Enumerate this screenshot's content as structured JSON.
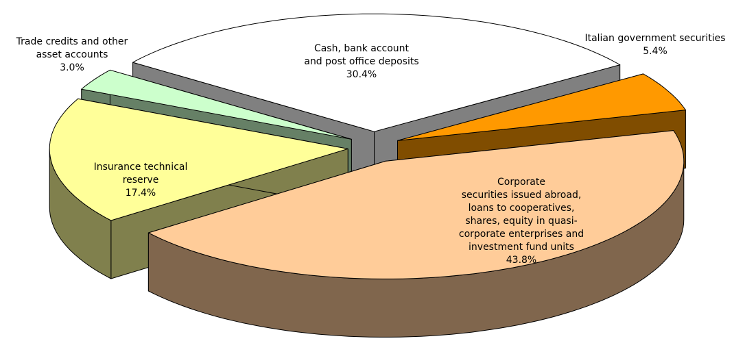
{
  "chart_data": {
    "type": "pie",
    "categories": [
      "Cash, bank account\nand post office deposits",
      "Italian government securities",
      "Corporate\nsecurities issued abroad,\nloans to cooperatives,\nshares, equity in quasi-\ncorporate enterprises and\ninvestment fund units",
      "Insurance technical\nreserve",
      "Trade credits and other\nasset accounts"
    ],
    "values": [
      30.4,
      5.4,
      43.8,
      17.4,
      3.0
    ],
    "value_labels": [
      "30.4%",
      "5.4%",
      "43.8%",
      "17.4%",
      "3.0%"
    ],
    "colors": [
      "#ffffff",
      "#ff9900",
      "#ffcc99",
      "#ffff99",
      "#ccffcc"
    ]
  }
}
